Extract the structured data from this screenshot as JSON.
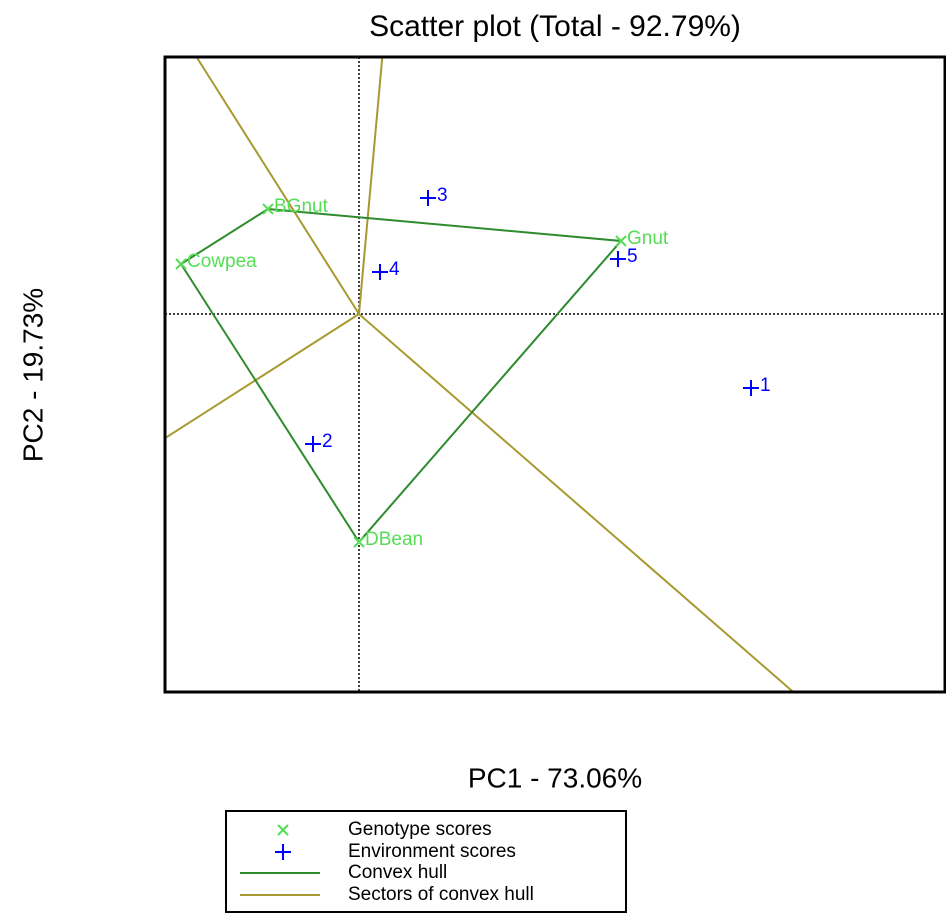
{
  "chart_data": {
    "type": "scatter",
    "title": "Scatter plot (Total - 92.79%)",
    "xlabel": "PC1 - 73.06%",
    "ylabel": "PC2 - 19.73%",
    "xlim": [
      -1.94,
      5.87
    ],
    "ylim": [
      -3.78,
      2.57
    ],
    "series": [
      {
        "name": "Genotype scores",
        "color": "#55dd55",
        "marker": "x",
        "labels": [
          "BGnut",
          "Cowpea",
          "Gnut",
          "DBean"
        ],
        "x": [
          -0.91,
          -1.78,
          2.62,
          0.0
        ],
        "values": [
          1.05,
          0.5,
          0.73,
          -2.28
        ]
      },
      {
        "name": "Environment scores",
        "color": "#0000ff",
        "marker": "+",
        "labels": [
          "1",
          "2",
          "3",
          "4",
          "5"
        ],
        "x": [
          3.92,
          -0.46,
          0.69,
          0.21,
          2.59
        ],
        "values": [
          -0.74,
          -1.3,
          1.16,
          0.42,
          0.55
        ]
      }
    ],
    "hull": {
      "name": "Convex hull",
      "color": "#2e8b2e"
    },
    "sectors": {
      "name": "Sectors of convex hull",
      "color": "#a89a30"
    }
  }
}
